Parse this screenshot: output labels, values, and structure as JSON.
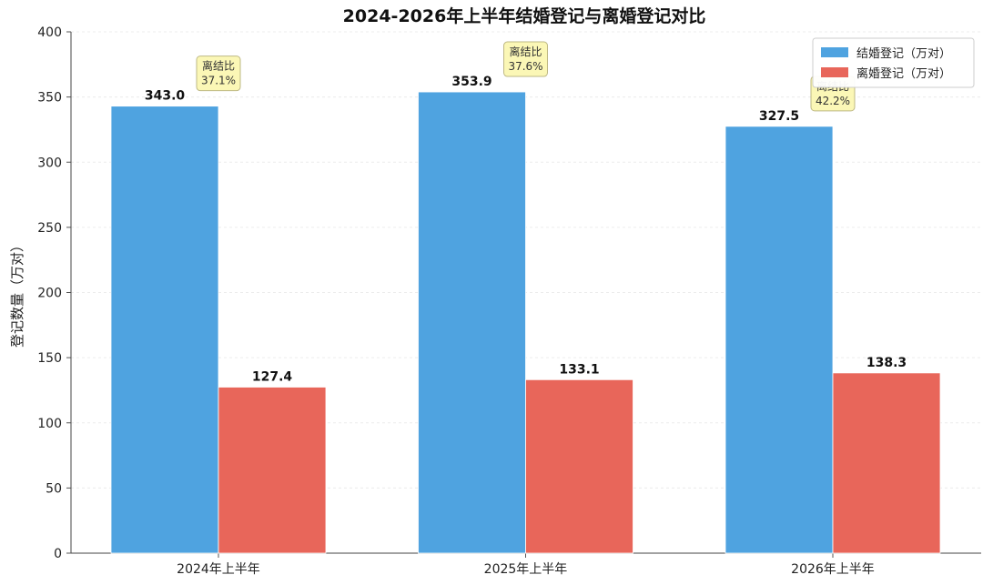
{
  "chart_data": {
    "type": "bar",
    "title": "2024-2026年上半年结婚登记与离婚登记对比",
    "xlabel": "",
    "ylabel": "登记数量（万对）",
    "categories": [
      "2024年上半年",
      "2025年上半年",
      "2026年上半年"
    ],
    "series": [
      {
        "name": "结婚登记（万对）",
        "values": [
          343.0,
          353.9,
          327.5
        ],
        "labels": [
          "343.0",
          "353.9",
          "327.5"
        ],
        "color": "#4fa3e0"
      },
      {
        "name": "离婚登记（万对）",
        "values": [
          127.4,
          133.1,
          138.3
        ],
        "labels": [
          "127.4",
          "133.1",
          "138.3"
        ],
        "color": "#e8665a"
      }
    ],
    "annotations": [
      {
        "title": "离结比",
        "value": "37.1%"
      },
      {
        "title": "离结比",
        "value": "37.6%"
      },
      {
        "title": "离结比",
        "value": "42.2%"
      }
    ],
    "ylim": [
      0,
      400
    ],
    "yticks": [
      "0",
      "50",
      "100",
      "150",
      "200",
      "250",
      "300",
      "350",
      "400"
    ],
    "grid": true,
    "legend_position": "top-right"
  }
}
